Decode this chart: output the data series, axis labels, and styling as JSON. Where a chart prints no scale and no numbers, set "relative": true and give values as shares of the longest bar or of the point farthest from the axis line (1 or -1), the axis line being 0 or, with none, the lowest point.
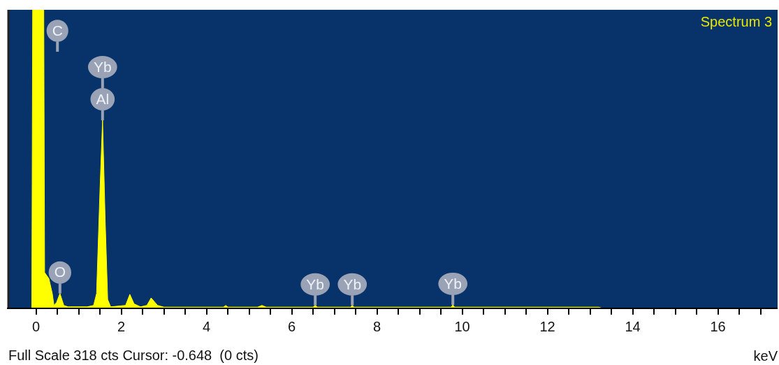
{
  "chart_data": {
    "type": "area",
    "relative": true,
    "xlabel": "keV",
    "xlim": [
      -0.65,
      17.4
    ],
    "xticks": [
      {
        "value": 0,
        "label": "0"
      },
      {
        "value": 0.5,
        "label": null
      },
      {
        "value": 1,
        "label": null
      },
      {
        "value": 1.5,
        "label": null
      },
      {
        "value": 2,
        "label": "2"
      },
      {
        "value": 2.5,
        "label": null
      },
      {
        "value": 3,
        "label": null
      },
      {
        "value": 3.5,
        "label": null
      },
      {
        "value": 4,
        "label": "4"
      },
      {
        "value": 4.5,
        "label": null
      },
      {
        "value": 5,
        "label": null
      },
      {
        "value": 5.5,
        "label": null
      },
      {
        "value": 6,
        "label": "6"
      },
      {
        "value": 6.5,
        "label": null
      },
      {
        "value": 7,
        "label": null
      },
      {
        "value": 7.5,
        "label": null
      },
      {
        "value": 8,
        "label": "8"
      },
      {
        "value": 8.5,
        "label": null
      },
      {
        "value": 9,
        "label": null
      },
      {
        "value": 9.5,
        "label": null
      },
      {
        "value": 10,
        "label": "10"
      },
      {
        "value": 10.5,
        "label": null
      },
      {
        "value": 11,
        "label": null
      },
      {
        "value": 11.5,
        "label": null
      },
      {
        "value": 12,
        "label": "12"
      },
      {
        "value": 12.5,
        "label": null
      },
      {
        "value": 13,
        "label": null
      },
      {
        "value": 13.5,
        "label": null
      },
      {
        "value": 14,
        "label": "14"
      },
      {
        "value": 14.5,
        "label": null
      },
      {
        "value": 15,
        "label": null
      },
      {
        "value": 15.5,
        "label": null
      },
      {
        "value": 16,
        "label": "16"
      },
      {
        "value": 16.5,
        "label": null
      },
      {
        "value": 17,
        "label": null
      }
    ],
    "series": [
      {
        "color": "#ffff00",
        "x": [
          -0.65,
          -0.1,
          -0.08,
          0.18,
          0.2,
          0.3,
          0.38,
          0.42,
          0.48,
          0.56,
          0.65,
          0.75,
          1.2,
          1.35,
          1.42,
          1.5,
          1.56,
          1.62,
          1.68,
          1.75,
          2.1,
          2.2,
          2.3,
          2.45,
          2.6,
          2.7,
          2.85,
          3.0,
          4.4,
          4.45,
          4.5,
          5.2,
          5.3,
          5.4,
          6.5,
          6.55,
          6.6,
          7.38,
          7.42,
          7.46,
          9.74,
          9.78,
          9.82,
          13.2,
          13.3,
          17.4
        ],
        "values": [
          0,
          0,
          1,
          1,
          0.12,
          0.1,
          0.05,
          0.01,
          0.02,
          0.05,
          0.01,
          0.005,
          0.005,
          0.01,
          0.05,
          0.4,
          0.63,
          0.3,
          0.03,
          0.005,
          0.01,
          0.047,
          0.015,
          0.005,
          0.01,
          0.035,
          0.01,
          0.004,
          0.004,
          0.01,
          0.004,
          0.004,
          0.01,
          0.004,
          0.004,
          0.01,
          0.004,
          0.004,
          0.01,
          0.004,
          0.004,
          0.012,
          0.004,
          0.004,
          0,
          0
        ]
      }
    ],
    "annotations": [
      "Spectrum 3",
      "Full Scale 318 cts Cursor: -0.648  (0 cts)",
      {
        "text": "C",
        "x": 0.18,
        "y": 1
      },
      {
        "text": "Al",
        "x": 1.56,
        "y": 0.63
      },
      "Yb",
      {
        "text": "O",
        "x": 0.56,
        "y": 0.05
      },
      {
        "text": "Yb",
        "x": 6.55,
        "y": 0.01
      },
      {
        "text": "Yb",
        "x": 7.42,
        "y": 0.01
      },
      {
        "text": "Yb",
        "x": 9.78,
        "y": 0.012
      }
    ]
  }
}
